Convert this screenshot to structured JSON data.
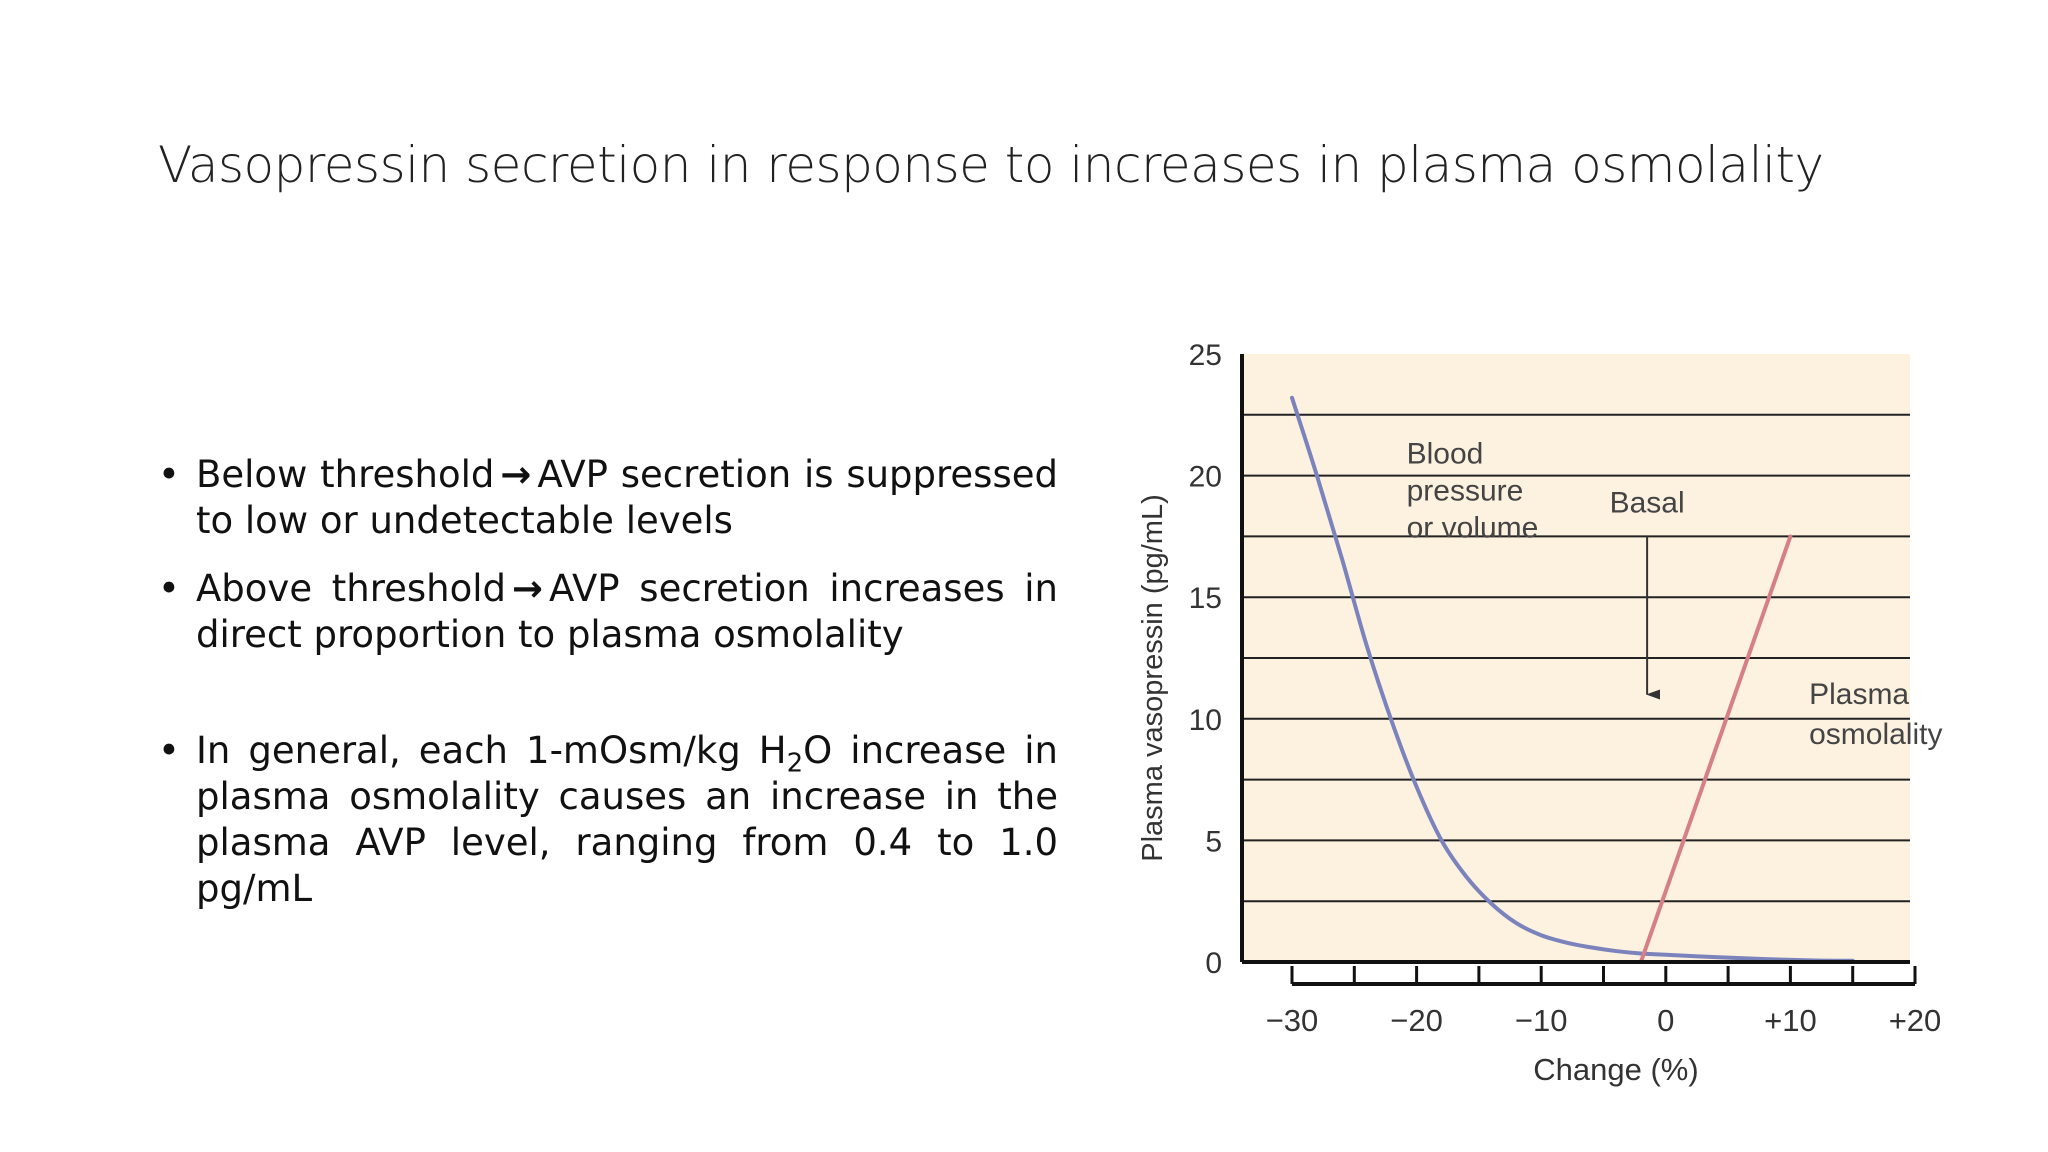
{
  "slide": {
    "title": "Vasopressin secretion in response to increases in plasma osmolality",
    "bullets": [
      {
        "pre": "Below threshold",
        "arrow": "→",
        "post": "AVP secretion is suppressed to low or undetectable levels"
      },
      {
        "pre": "Above threshold",
        "arrow": "→",
        "post": "AVP secretion increases in direct proportion to plasma osmolality"
      },
      {
        "pre": "In general, each 1-mOsm/kg H",
        "sub": "2",
        "post": "O increase in plasma osmolality causes an increase in the plasma AVP level, ranging from 0.4 to 1.0 pg/mL"
      }
    ]
  },
  "chart_data": {
    "type": "line",
    "xlabel": "Change (%)",
    "ylabel": "Plasma vasopressin (pg/mL)",
    "xlim": [
      -30,
      20
    ],
    "ylim": [
      0,
      25
    ],
    "x_ticks": [
      -30,
      -20,
      -10,
      0,
      10,
      20
    ],
    "x_tick_labels": [
      "−30",
      "−20",
      "−10",
      "0",
      "+10",
      "+20"
    ],
    "y_ticks": [
      0,
      5,
      10,
      15,
      20,
      25
    ],
    "y_tick_labels": [
      "0",
      "5",
      "10",
      "15",
      "20",
      "25"
    ],
    "grid": "horizontal",
    "background": "#fdf1e0",
    "series": [
      {
        "name": "Blood pressure or volume",
        "label_lines": [
          "Blood",
          "pressure",
          "or volume"
        ],
        "color": "#7b83bd",
        "x": [
          -30,
          -28,
          -26,
          -24,
          -22,
          -20,
          -18,
          -16,
          -14,
          -12,
          -10,
          -8,
          -6,
          -4,
          -2,
          0,
          4,
          8,
          12,
          15
        ],
        "y": [
          23.2,
          20.0,
          16.6,
          13.0,
          9.9,
          7.2,
          5.0,
          3.5,
          2.4,
          1.6,
          1.1,
          0.8,
          0.6,
          0.45,
          0.35,
          0.3,
          0.2,
          0.12,
          0.06,
          0.05
        ]
      },
      {
        "name": "Plasma osmolality",
        "label_lines": [
          "Plasma",
          "osmolality"
        ],
        "color": "#d77f87",
        "x": [
          -2,
          10
        ],
        "y": [
          0,
          17.5
        ]
      }
    ],
    "annotations": [
      {
        "text": "Basal",
        "arrow": "down",
        "x": -1.5,
        "y_from": 17.5,
        "y_to": 11
      }
    ]
  }
}
